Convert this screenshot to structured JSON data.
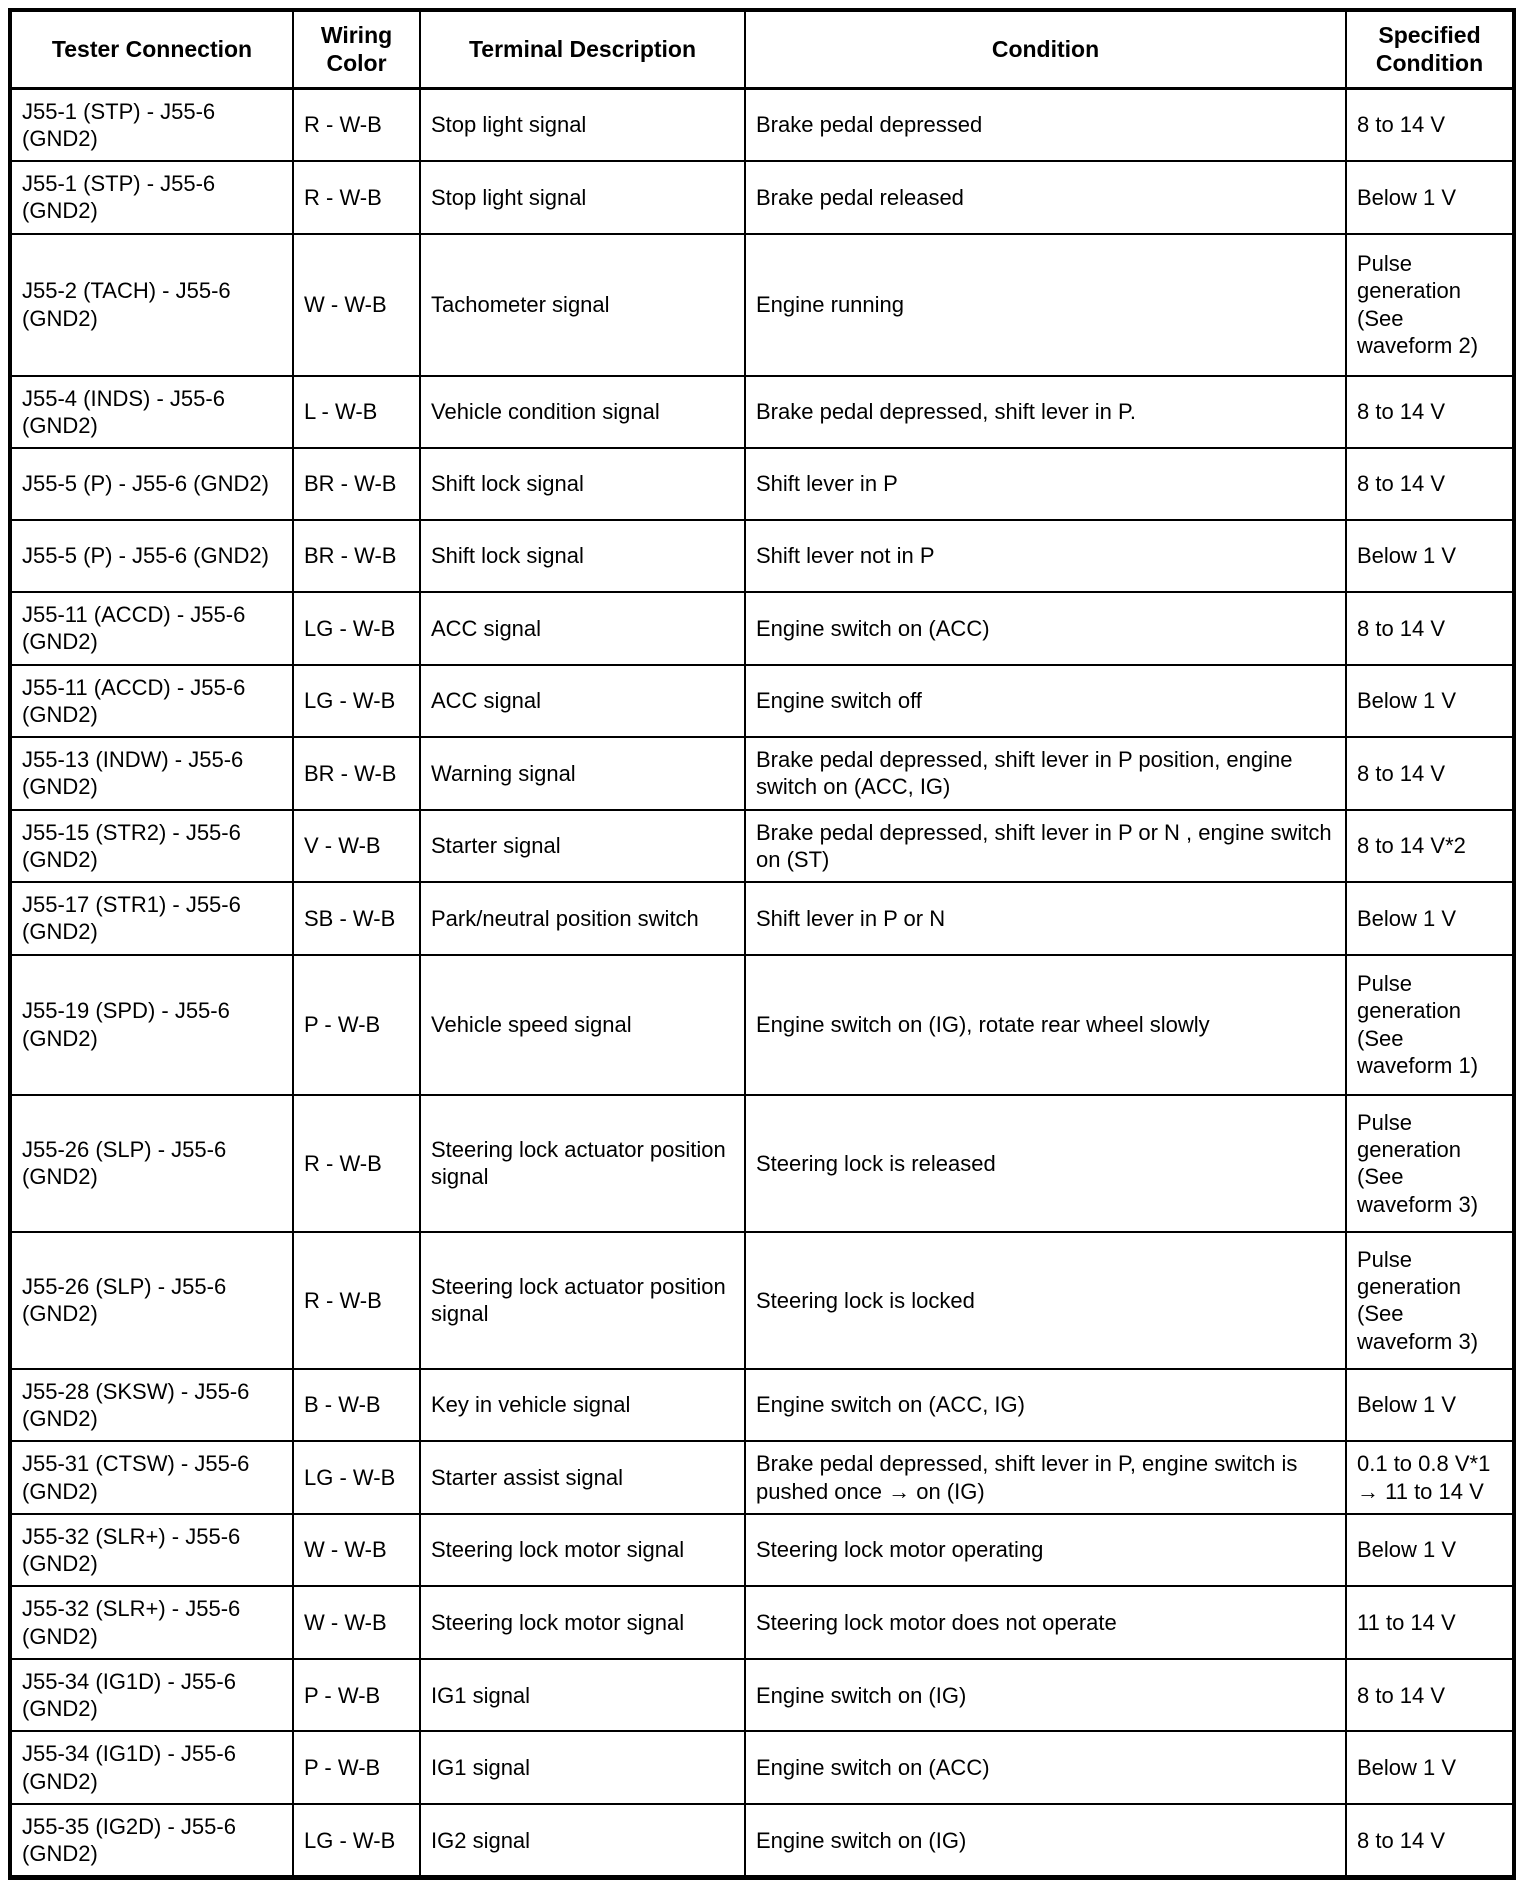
{
  "table": {
    "columns": [
      {
        "label": "Tester Connection"
      },
      {
        "label": "Wiring Color"
      },
      {
        "label": "Terminal Description"
      },
      {
        "label": "Condition"
      },
      {
        "label": "Specified Condition"
      }
    ],
    "rows": [
      {
        "connection": "J55-1 (STP) - J55-6 (GND2)",
        "color": "R - W-B",
        "terminal": "Stop light signal",
        "condition": "Brake pedal depressed",
        "specified": "8 to 14 V"
      },
      {
        "connection": "J55-1 (STP) - J55-6 (GND2)",
        "color": "R - W-B",
        "terminal": "Stop light signal",
        "condition": "Brake pedal released",
        "specified": "Below 1 V"
      },
      {
        "connection": "J55-2 (TACH) - J55-6 (GND2)",
        "color": "W - W-B",
        "terminal": "Tachometer signal",
        "condition": "Engine running",
        "specified": "Pulse generation (See waveform 2)"
      },
      {
        "connection": "J55-4 (INDS) - J55-6 (GND2)",
        "color": "L - W-B",
        "terminal": "Vehicle condition signal",
        "condition": "Brake pedal depressed, shift lever in P.",
        "specified": "8 to 14 V"
      },
      {
        "connection": "J55-5 (P) - J55-6 (GND2)",
        "color": "BR - W-B",
        "terminal": "Shift lock signal",
        "condition": "Shift lever in P",
        "specified": "8 to 14 V"
      },
      {
        "connection": "J55-5 (P) - J55-6 (GND2)",
        "color": "BR - W-B",
        "terminal": "Shift lock signal",
        "condition": "Shift lever not in P",
        "specified": "Below 1 V"
      },
      {
        "connection": "J55-11 (ACCD) - J55-6 (GND2)",
        "color": "LG - W-B",
        "terminal": "ACC signal",
        "condition": "Engine switch on (ACC)",
        "specified": "8 to 14 V"
      },
      {
        "connection": "J55-11 (ACCD) - J55-6 (GND2)",
        "color": "LG - W-B",
        "terminal": "ACC signal",
        "condition": "Engine switch off",
        "specified": "Below 1 V"
      },
      {
        "connection": "J55-13 (INDW) - J55-6 (GND2)",
        "color": "BR - W-B",
        "terminal": "Warning signal",
        "condition": "Brake pedal depressed, shift lever in P position, engine switch on (ACC, IG)",
        "specified": "8 to 14 V"
      },
      {
        "connection": "J55-15 (STR2) - J55-6 (GND2)",
        "color": "V - W-B",
        "terminal": "Starter signal",
        "condition": "Brake pedal depressed, shift lever in P or N , engine switch on (ST)",
        "specified": "8 to 14 V*2"
      },
      {
        "connection": "J55-17 (STR1) - J55-6 (GND2)",
        "color": "SB - W-B",
        "terminal": "Park/neutral position switch",
        "condition": "Shift lever in P or N",
        "specified": "Below 1 V"
      },
      {
        "connection": "J55-19 (SPD) - J55-6 (GND2)",
        "color": "P - W-B",
        "terminal": "Vehicle speed signal",
        "condition": "Engine switch on (IG), rotate rear wheel slowly",
        "specified": "Pulse generation (See waveform 1)"
      },
      {
        "connection": "J55-26 (SLP) - J55-6 (GND2)",
        "color": "R - W-B",
        "terminal": "Steering lock actuator position signal",
        "condition": "Steering lock is released",
        "specified": "Pulse generation (See waveform 3)"
      },
      {
        "connection": "J55-26 (SLP) - J55-6 (GND2)",
        "color": "R - W-B",
        "terminal": "Steering lock actuator position signal",
        "condition": "Steering lock is locked",
        "specified": "Pulse generation (See waveform 3)"
      },
      {
        "connection": "J55-28 (SKSW) - J55-6 (GND2)",
        "color": "B - W-B",
        "terminal": "Key in vehicle signal",
        "condition": "Engine switch on (ACC, IG)",
        "specified": "Below 1 V"
      },
      {
        "connection": "J55-31 (CTSW) - J55-6 (GND2)",
        "color": "LG - W-B",
        "terminal": "Starter assist signal",
        "condition": "Brake pedal depressed, shift lever in P, engine switch is pushed once → on (IG)",
        "specified": "0.1 to 0.8 V*1 → 11 to 14 V"
      },
      {
        "connection": "J55-32 (SLR+) - J55-6 (GND2)",
        "color": "W - W-B",
        "terminal": "Steering lock motor signal",
        "condition": "Steering lock motor operating",
        "specified": "Below 1 V"
      },
      {
        "connection": "J55-32 (SLR+) - J55-6 (GND2)",
        "color": "W - W-B",
        "terminal": "Steering lock motor signal",
        "condition": "Steering lock motor does not operate",
        "specified": "11 to 14 V"
      },
      {
        "connection": "J55-34 (IG1D) - J55-6 (GND2)",
        "color": "P - W-B",
        "terminal": "IG1 signal",
        "condition": "Engine switch on (IG)",
        "specified": "8 to 14 V"
      },
      {
        "connection": "J55-34 (IG1D) - J55-6 (GND2)",
        "color": "P - W-B",
        "terminal": "IG1 signal",
        "condition": "Engine switch on (ACC)",
        "specified": "Below 1 V"
      },
      {
        "connection": "J55-35 (IG2D) - J55-6 (GND2)",
        "color": "LG - W-B",
        "terminal": "IG2 signal",
        "condition": "Engine switch on (IG)",
        "specified": "8 to 14 V"
      }
    ]
  }
}
